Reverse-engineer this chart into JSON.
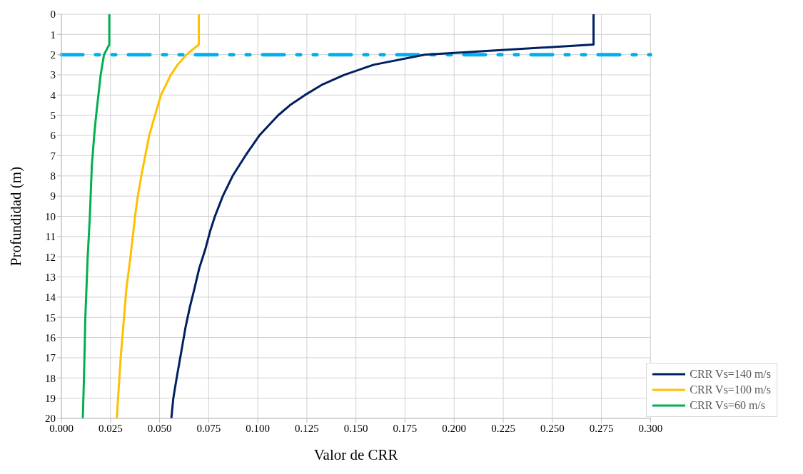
{
  "chart_data": {
    "type": "line",
    "xlabel": "Valor de CRR",
    "ylabel": "Profundidad (m)",
    "xlim": [
      0,
      0.3
    ],
    "xticks": [
      {
        "value": 0,
        "label": "0.000"
      },
      {
        "value": 0.025,
        "label": "0.025"
      },
      {
        "value": 0.05,
        "label": "0.050"
      },
      {
        "value": 0.075,
        "label": "0.075"
      },
      {
        "value": 0.1,
        "label": "0.100"
      },
      {
        "value": 0.125,
        "label": "0.125"
      },
      {
        "value": 0.15,
        "label": "0.150"
      },
      {
        "value": 0.175,
        "label": "0.175"
      },
      {
        "value": 0.2,
        "label": "0.200"
      },
      {
        "value": 0.225,
        "label": "0.225"
      },
      {
        "value": 0.25,
        "label": "0.250"
      },
      {
        "value": 0.275,
        "label": "0.275"
      },
      {
        "value": 0.3,
        "label": "0.300"
      }
    ],
    "ylim": [
      20,
      0
    ],
    "yticks": [
      0,
      1,
      2,
      3,
      4,
      5,
      6,
      7,
      8,
      9,
      10,
      11,
      12,
      13,
      14,
      15,
      16,
      17,
      18,
      19,
      20
    ],
    "grid": true,
    "legend": "bottom right",
    "marker": "none",
    "line_style": "solid",
    "ref_lines": [
      {
        "axis": "y",
        "value": 2,
        "color": "#00b0f0",
        "line_style": "dashed"
      }
    ],
    "series": [
      {
        "name": "CRR Vs=140 m/s",
        "color": "#002060",
        "x": [
          0.271,
          0.271,
          0.185,
          0.159,
          0.144,
          0.1325,
          0.124,
          0.1164,
          0.1104,
          0.1008,
          0.0937,
          0.0872,
          0.0822,
          0.0782,
          0.0757,
          0.0732,
          0.0702,
          0.0677,
          0.0654,
          0.0632,
          0.0607,
          0.0587,
          0.057,
          0.056
        ],
        "values": [
          0,
          1.5,
          2,
          2.5,
          3,
          3.5,
          4,
          4.5,
          5,
          6,
          7,
          8,
          9,
          10,
          10.75,
          11.66,
          12.57,
          13.6,
          14.5,
          15.5,
          16.9,
          18,
          19,
          20
        ]
      },
      {
        "name": "CRR Vs=100 m/s",
        "color": "#ffc000",
        "x": [
          0.07,
          0.07,
          0.0637,
          0.0592,
          0.0557,
          0.0507,
          0.0477,
          0.0447,
          0.0427,
          0.0407,
          0.0389,
          0.0375,
          0.0352,
          0.0332,
          0.0319,
          0.0302,
          0.0292,
          0.0282
        ],
        "values": [
          0,
          1.5,
          2,
          2.5,
          3,
          4,
          5,
          6,
          7,
          8,
          9,
          10,
          12,
          13.5,
          15,
          17,
          18.5,
          20
        ]
      },
      {
        "name": "CRR Vs=60 m/s",
        "color": "#00b050",
        "x": [
          0.0244,
          0.0244,
          0.0217,
          0.02,
          0.0177,
          0.0167,
          0.0155,
          0.0145,
          0.0134,
          0.0122,
          0.0115,
          0.0109
        ],
        "values": [
          0,
          1.5,
          2,
          3,
          5,
          6,
          7.5,
          10,
          12,
          15,
          18,
          20
        ]
      }
    ]
  }
}
